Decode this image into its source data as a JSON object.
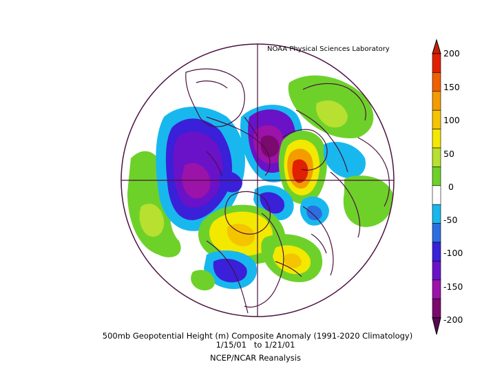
{
  "credit": "NOAA Physical Sciences Laboratory",
  "title": "500mb Geopotential Height (m) Composite Anomaly (1991-2020 Climatology)",
  "date_range": "1/15/01   to 1/21/01",
  "source": "NCEP/NCAR Reanalysis",
  "colorbar": {
    "ticks": [
      "200",
      "150",
      "100",
      "50",
      "0",
      "-50",
      "-100",
      "-150",
      "-200"
    ],
    "colors": [
      "#7a0a6e",
      "#9b13a8",
      "#6a12c8",
      "#3a20d8",
      "#2c6ee0",
      "#18b8ee",
      "#ffffff",
      "#6ed12a",
      "#b8e030",
      "#f3e800",
      "#f5c400",
      "#f39c00",
      "#f06000",
      "#e02000"
    ]
  },
  "map": {
    "projection": "north-polar-stereographic",
    "features": [
      {
        "name": "aleutian-trough-negative",
        "sign": "negative",
        "peak_m": -170
      },
      {
        "name": "arctic-negative",
        "sign": "negative",
        "peak_m": -200
      },
      {
        "name": "scandinavia-positive",
        "sign": "positive",
        "peak_m": 200
      },
      {
        "name": "north-america-positive",
        "sign": "positive",
        "peak_m": 120
      },
      {
        "name": "atlantic-positive",
        "sign": "positive",
        "peak_m": 110
      },
      {
        "name": "hudson-negative",
        "sign": "negative",
        "peak_m": -120
      }
    ]
  }
}
